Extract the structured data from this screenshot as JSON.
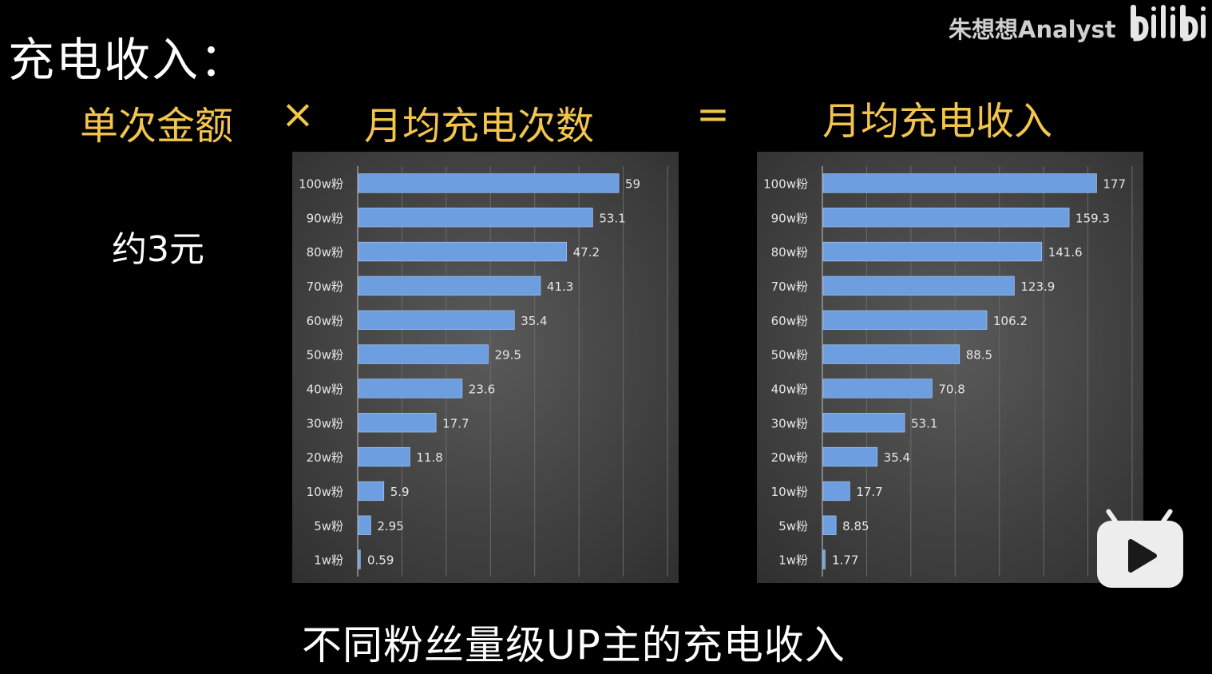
{
  "main_title": "充电收入：",
  "watermark": "朱想想Analyst",
  "formula": {
    "term1": "单次金额",
    "times": "×",
    "term2": "月均充电次数",
    "equals": "=",
    "result": "月均充电收入"
  },
  "price_note": "约3元",
  "subtitle": "不同粉丝量级UP主的充电收入",
  "colors": {
    "accent": "#f3c54e",
    "bar": "#6d9ee0",
    "panel_bg": "#4a4a4a"
  },
  "icons": {
    "logo": "bilibili-logo",
    "tv": "bilibili-tv-play-icon"
  },
  "chart_data": [
    {
      "type": "bar",
      "orientation": "horizontal",
      "categories": [
        "100w粉",
        "90w粉",
        "80w粉",
        "70w粉",
        "60w粉",
        "50w粉",
        "40w粉",
        "30w粉",
        "20w粉",
        "10w粉",
        "5w粉",
        "1w粉"
      ],
      "values": [
        59,
        53.1,
        47.2,
        41.3,
        35.4,
        29.5,
        23.6,
        17.7,
        11.8,
        5.9,
        2.95,
        0.59
      ],
      "value_labels": [
        "59",
        "53.1",
        "47.2",
        "41.3",
        "35.4",
        "29.5",
        "23.6",
        "17.7",
        "11.8",
        "5.9",
        "2.95",
        "0.59"
      ],
      "xlim": [
        0,
        70
      ],
      "grid": true,
      "legend": "none"
    },
    {
      "type": "bar",
      "orientation": "horizontal",
      "categories": [
        "100w粉",
        "90w粉",
        "80w粉",
        "70w粉",
        "60w粉",
        "50w粉",
        "40w粉",
        "30w粉",
        "20w粉",
        "10w粉",
        "5w粉",
        "1w粉"
      ],
      "values": [
        177,
        159.3,
        141.6,
        123.9,
        106.2,
        88.5,
        70.8,
        53.1,
        35.4,
        17.7,
        8.85,
        1.77
      ],
      "value_labels": [
        "177",
        "159.3",
        "141.6",
        "123.9",
        "106.2",
        "88.5",
        "70.8",
        "53.1",
        "35.4",
        "17.7",
        "8.85",
        "1.77"
      ],
      "xlim": [
        0,
        200
      ],
      "grid": true,
      "legend": "none"
    }
  ]
}
